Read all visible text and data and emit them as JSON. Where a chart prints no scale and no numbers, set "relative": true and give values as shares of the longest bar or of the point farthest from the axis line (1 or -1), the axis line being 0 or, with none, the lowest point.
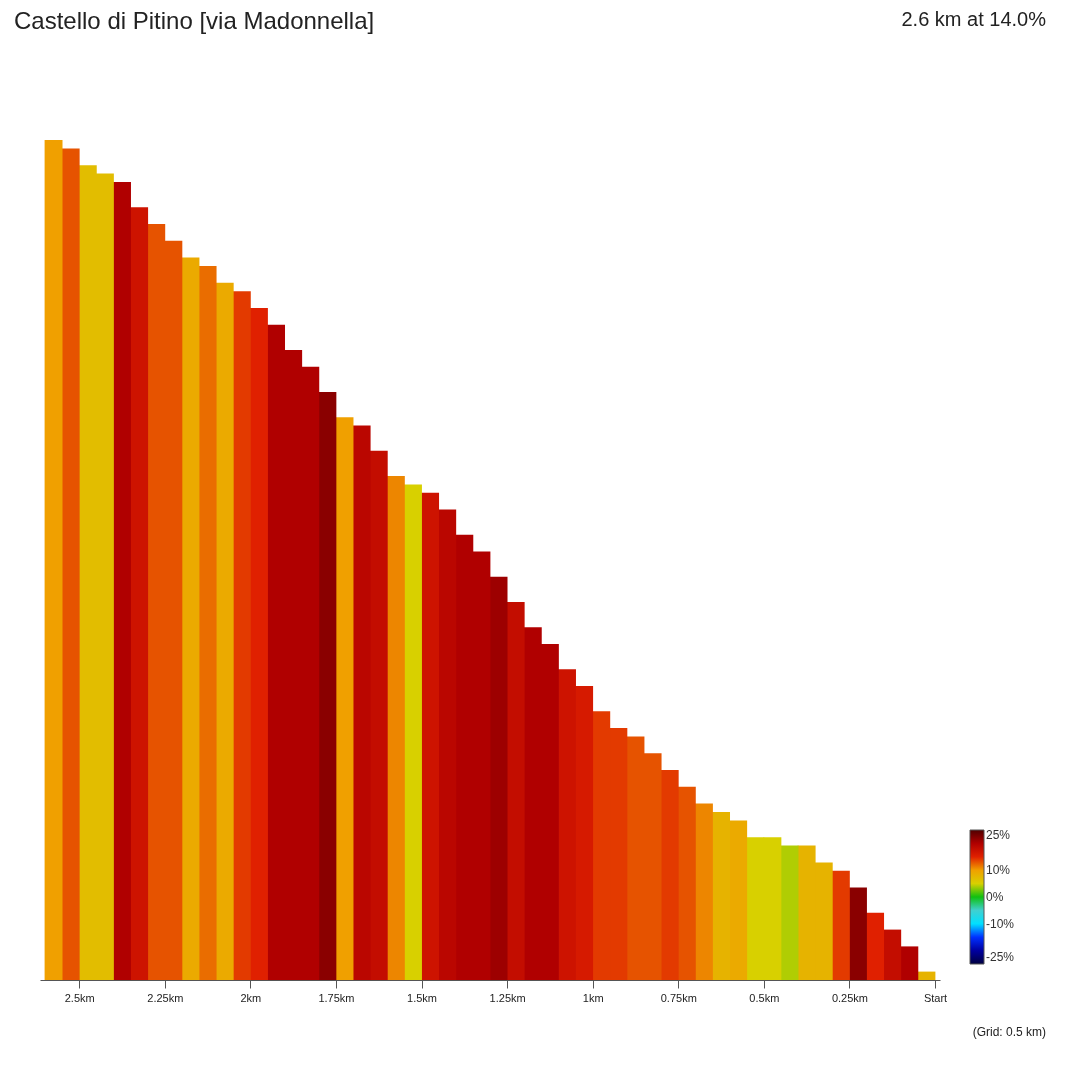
{
  "chart_data": {
    "type": "bar",
    "relative": true,
    "title": "Castello di Pitino [via Madonnella]",
    "subtitle": "2.6 km at 14.0%",
    "annotations": [
      "(Grid: 0.5 km)"
    ],
    "x": [
      0.025,
      0.075,
      0.125,
      0.175,
      0.225,
      0.275,
      0.325,
      0.375,
      0.425,
      0.475,
      0.525,
      0.575,
      0.625,
      0.675,
      0.725,
      0.775,
      0.825,
      0.875,
      0.925,
      0.975,
      1.025,
      1.075,
      1.125,
      1.175,
      1.225,
      1.275,
      1.325,
      1.375,
      1.425,
      1.475,
      1.525,
      1.575,
      1.625,
      1.675,
      1.725,
      1.775,
      1.825,
      1.875,
      1.925,
      1.975,
      2.025,
      2.075,
      2.125,
      2.175,
      2.225,
      2.275,
      2.325,
      2.375,
      2.425,
      2.475,
      2.525,
      2.575
    ],
    "values": [
      0.01,
      0.04,
      0.06,
      0.08,
      0.11,
      0.13,
      0.14,
      0.16,
      0.16,
      0.17,
      0.17,
      0.19,
      0.2,
      0.21,
      0.23,
      0.25,
      0.27,
      0.29,
      0.3,
      0.32,
      0.35,
      0.37,
      0.4,
      0.42,
      0.45,
      0.48,
      0.51,
      0.53,
      0.56,
      0.58,
      0.59,
      0.6,
      0.63,
      0.66,
      0.67,
      0.7,
      0.73,
      0.75,
      0.78,
      0.8,
      0.82,
      0.83,
      0.85,
      0.86,
      0.88,
      0.9,
      0.92,
      0.95,
      0.96,
      0.97,
      0.99,
      1
    ],
    "cvalues": [
      8,
      20,
      18,
      15,
      22,
      14,
      8,
      8,
      4,
      5,
      5,
      9,
      8,
      11,
      13,
      14,
      13,
      13,
      14,
      14,
      16,
      17,
      20,
      20,
      18,
      21,
      20,
      20,
      19,
      17,
      5,
      11,
      18,
      19,
      10,
      22,
      20,
      20,
      20,
      15,
      14,
      9,
      12,
      9,
      13,
      13,
      17,
      20,
      7,
      7,
      13,
      10
    ],
    "xlim": [
      2.6,
      0
    ],
    "xticks": [
      {
        "value": 0,
        "label": "Start"
      },
      {
        "value": 0.25,
        "label": "0.25km"
      },
      {
        "value": 0.5,
        "label": "0.5km"
      },
      {
        "value": 0.75,
        "label": "0.75km"
      },
      {
        "value": 1,
        "label": "1km"
      },
      {
        "value": 1.25,
        "label": "1.25km"
      },
      {
        "value": 1.5,
        "label": "1.5km"
      },
      {
        "value": 1.75,
        "label": "1.75km"
      },
      {
        "value": 2,
        "label": "2km"
      },
      {
        "value": 2.25,
        "label": "2.25km"
      },
      {
        "value": 2.5,
        "label": "2.5km"
      }
    ],
    "clim": [
      -25,
      25
    ],
    "cticks": [
      {
        "value": 25,
        "label": "25%"
      },
      {
        "value": 10,
        "label": "10%"
      },
      {
        "value": 0,
        "label": "0%"
      },
      {
        "value": -10,
        "label": "-10%"
      },
      {
        "value": -25,
        "label": "-25%"
      }
    ]
  }
}
